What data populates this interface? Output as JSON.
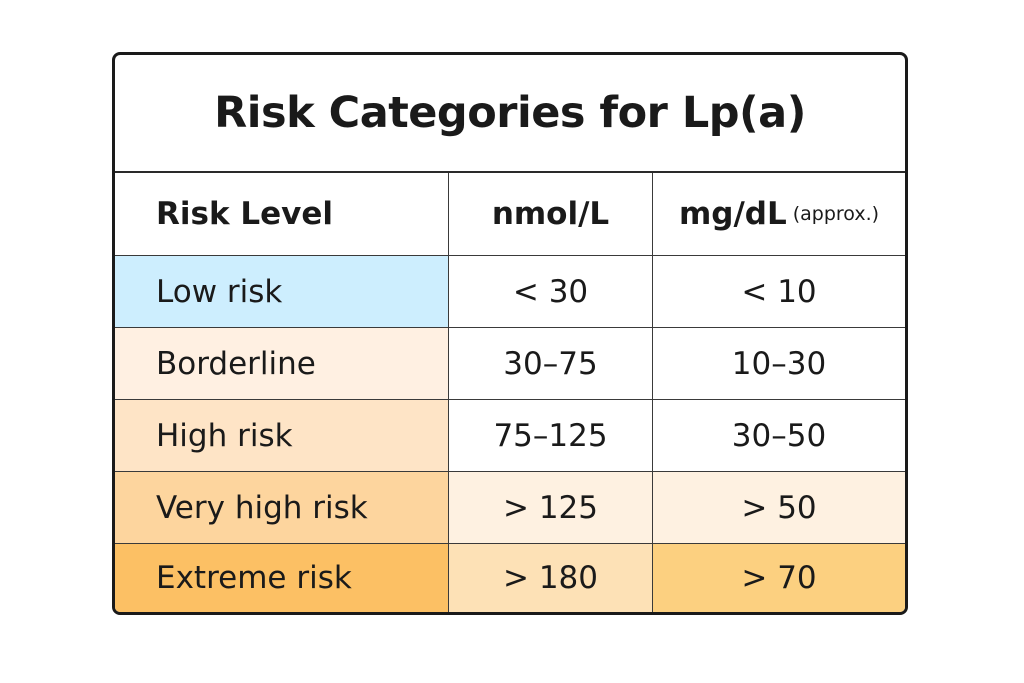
{
  "title": "Risk Categories for Lp(a)",
  "headers": {
    "level": "Risk Level",
    "nmol": "nmol/L",
    "mgdl": "mg/dL",
    "mgdl_note": "(approx.)"
  },
  "rows": [
    {
      "level": "Low risk",
      "nmol": "< 30",
      "mgdl": "< 10",
      "colors": {
        "label": "#cdeefe",
        "nmol": "#ffffff",
        "mgdl": "#ffffff"
      }
    },
    {
      "level": "Borderline",
      "nmol": "30–75",
      "mgdl": "10–30",
      "colors": {
        "label": "#fff0e2",
        "nmol": "#ffffff",
        "mgdl": "#ffffff"
      }
    },
    {
      "level": "High risk",
      "nmol": "75–125",
      "mgdl": "30–50",
      "colors": {
        "label": "#fee4c6",
        "nmol": "#ffffff",
        "mgdl": "#ffffff"
      }
    },
    {
      "level": "Very high risk",
      "nmol": "> 125",
      "mgdl": "> 50",
      "colors": {
        "label": "#fdd59e",
        "nmol": "#fef1e1",
        "mgdl": "#fef1e1"
      }
    },
    {
      "level": "Extreme risk",
      "nmol": "> 180",
      "mgdl": "> 70",
      "colors": {
        "label": "#fcc064",
        "nmol": "#fde1b6",
        "mgdl": "#fcd080"
      }
    }
  ]
}
